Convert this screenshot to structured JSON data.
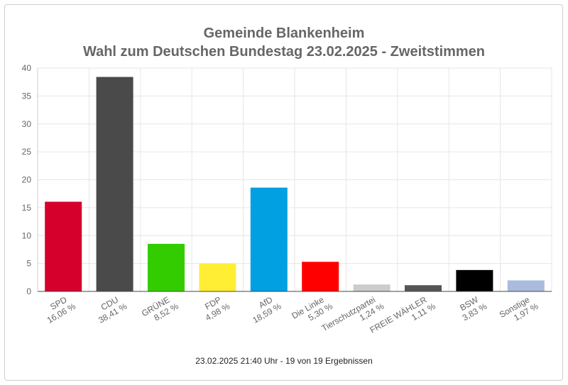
{
  "chart_data": {
    "type": "bar",
    "title": "Gemeinde Blankenheim",
    "subtitle": "Wahl zum Deutschen Bundestag 23.02.2025  - Zweitstimmen",
    "ylim": [
      0,
      40
    ],
    "yticks": [
      0,
      5,
      10,
      15,
      20,
      25,
      30,
      35,
      40
    ],
    "grid": true,
    "categories": [
      "SPD",
      "CDU",
      "GRÜNE",
      "FDP",
      "AfD",
      "Die Linke",
      "Tierschutzpartei",
      "FREIE WÄHLER",
      "BSW",
      "Sonstige"
    ],
    "values": [
      16.06,
      38.41,
      8.52,
      4.98,
      18.59,
      5.3,
      1.24,
      1.11,
      3.83,
      1.97
    ],
    "value_labels": [
      "16,06 %",
      "38,41 %",
      "8,52 %",
      "4,98 %",
      "18,59 %",
      "5,30 %",
      "1,24 %",
      "1,11 %",
      "3,83 %",
      "1,97 %"
    ],
    "colors": [
      "#d5002c",
      "#4a4a4a",
      "#33cc00",
      "#ffee33",
      "#00a0e1",
      "#ff0000",
      "#cccccc",
      "#555555",
      "#000000",
      "#aabbdd"
    ]
  },
  "footer": "23.02.2025 21:40 Uhr - 19 von 19 Ergebnissen"
}
